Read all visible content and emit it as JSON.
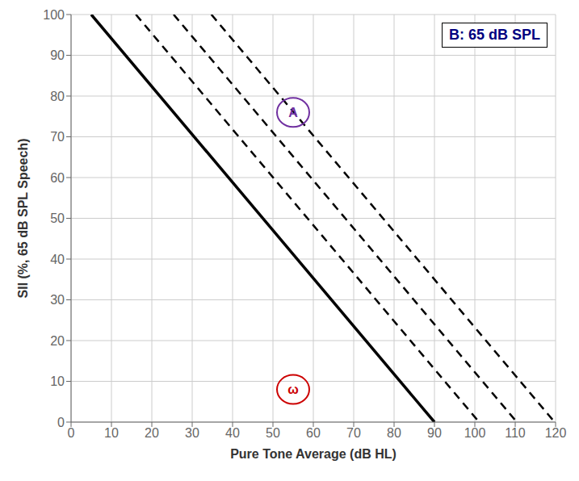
{
  "chart_data": {
    "type": "line",
    "title": "B: 65 dB SPL",
    "x_label": "Pure Tone Average (dB HL)",
    "y_label": "SII (%, 65 dB SPL Speech)",
    "xlim": [
      0,
      120
    ],
    "ylim": [
      0,
      100
    ],
    "xticks": [
      0,
      10,
      20,
      30,
      40,
      50,
      60,
      70,
      80,
      90,
      100,
      110,
      120
    ],
    "yticks": [
      0,
      10,
      20,
      30,
      40,
      50,
      60,
      70,
      80,
      90,
      100
    ],
    "grid": true,
    "series": [
      {
        "x": [
          5,
          90
        ],
        "values": [
          100,
          0
        ],
        "color": "#000000",
        "line_style": "solid"
      },
      {
        "x": [
          16.05,
          101.05
        ],
        "values": [
          100,
          0
        ],
        "color": "#000000",
        "line_style": "dashed"
      },
      {
        "x": [
          25.4,
          110.4
        ],
        "values": [
          100,
          0
        ],
        "color": "#000000",
        "line_style": "dashed"
      },
      {
        "x": [
          34.75,
          119.75
        ],
        "values": [
          100,
          0
        ],
        "color": "#000000",
        "line_style": "dashed"
      }
    ],
    "annotations": [
      {
        "text": "A",
        "x": 55,
        "y": 76,
        "color": "#7030A0"
      },
      {
        "text": "ω",
        "x": 55,
        "y": 8,
        "color": "#cc0000"
      }
    ]
  }
}
